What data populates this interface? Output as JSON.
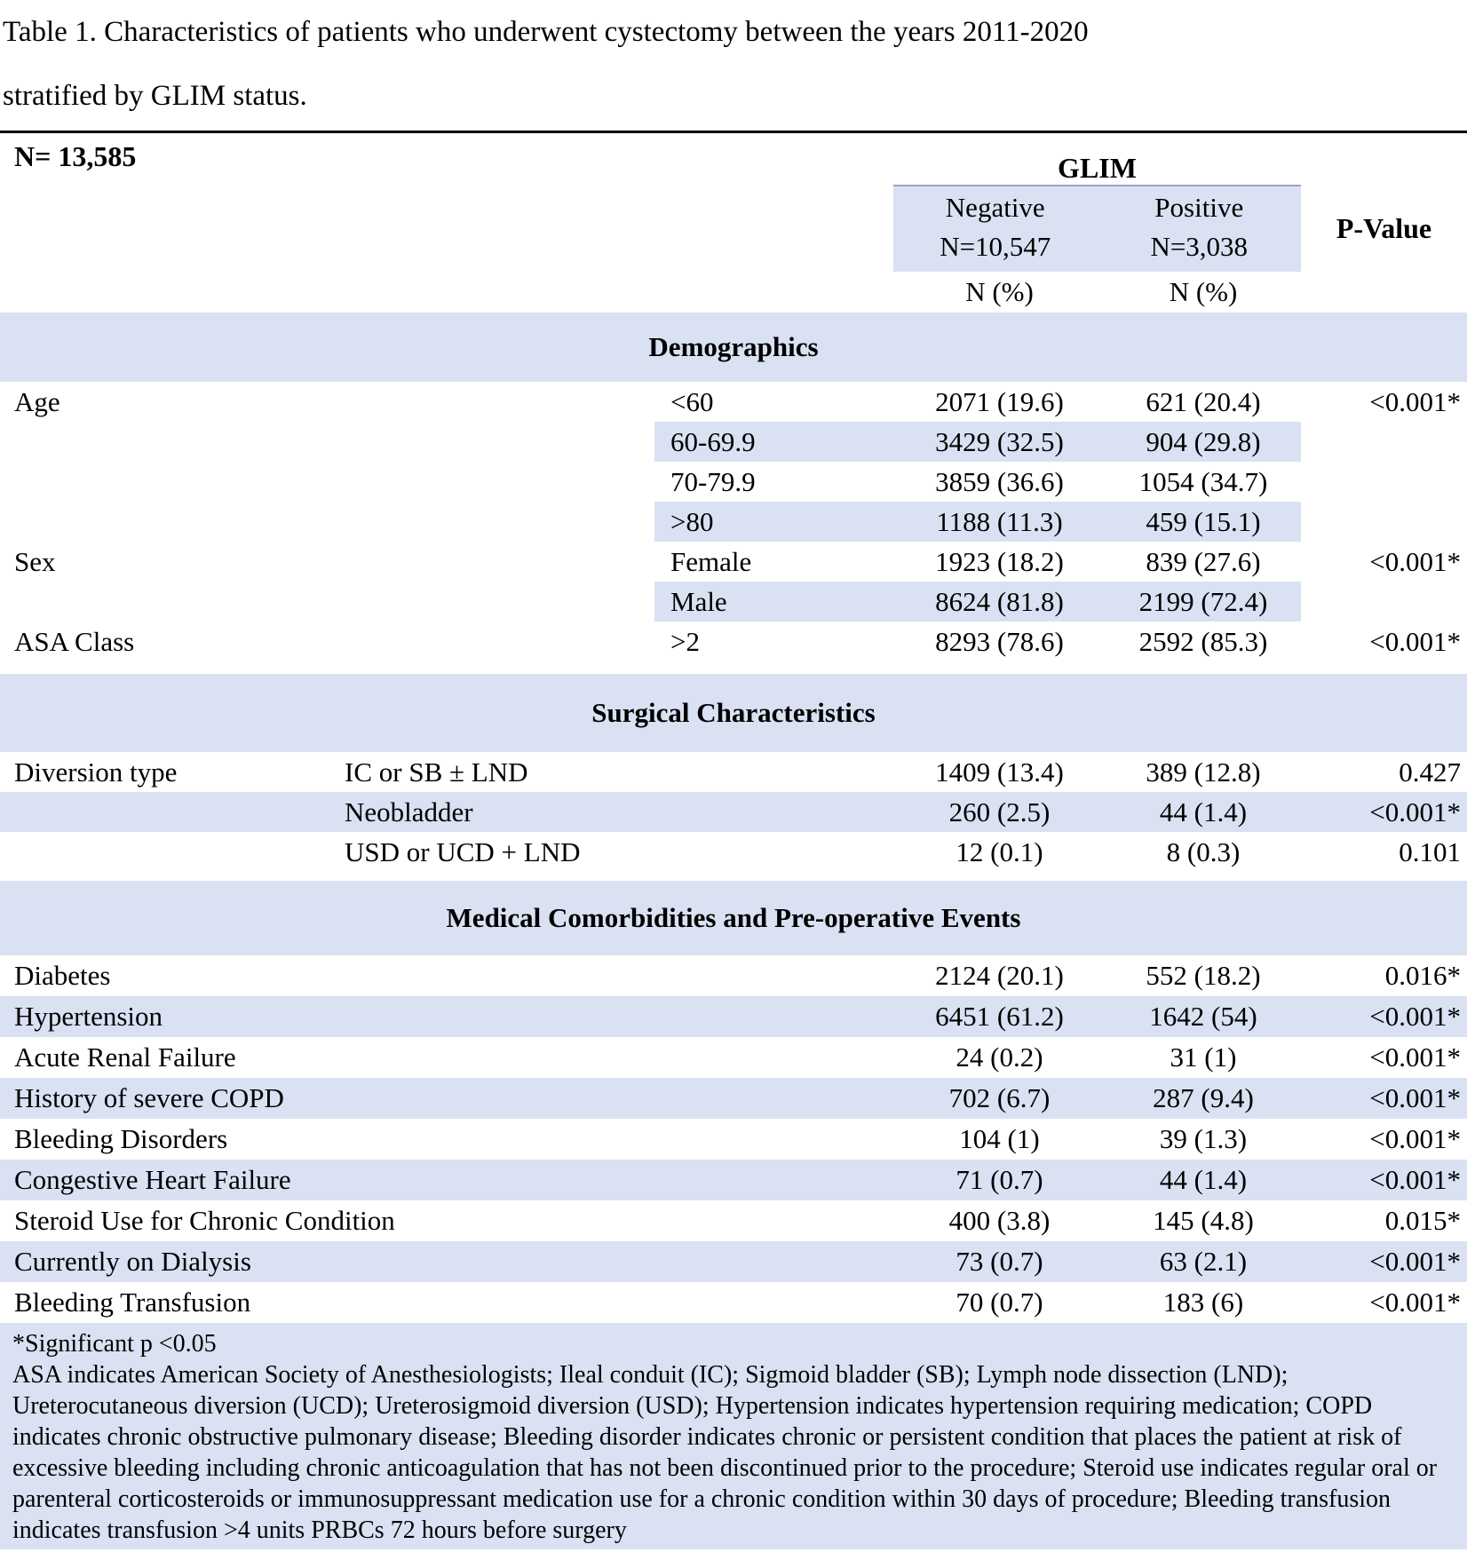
{
  "title": {
    "line1": "Table 1. Characteristics of patients who underwent cystectomy between the years 2011-2020",
    "line2": "stratified by GLIM status."
  },
  "header": {
    "n_total": "N= 13,585",
    "group_label": "GLIM",
    "p_label": "P-Value",
    "negative": {
      "name": "Negative",
      "n": "N=10,547",
      "unit": "N (%)"
    },
    "positive": {
      "name": "Positive",
      "n": "N=3,038",
      "unit": "N (%)"
    }
  },
  "colors": {
    "row_shade": "#d9e1f2",
    "header_box_border": "#95a5c7"
  },
  "sections": [
    {
      "heading": "Demographics",
      "style": "demographic",
      "rows": [
        {
          "label": "Age",
          "sub": "<60",
          "neg": "2071 (19.6)",
          "pos": "621 (20.4)",
          "p": "<0.001*",
          "shaded": false
        },
        {
          "label": "",
          "sub": "60-69.9",
          "neg": "3429 (32.5)",
          "pos": "904 (29.8)",
          "p": "",
          "shaded": true
        },
        {
          "label": "",
          "sub": "70-79.9",
          "neg": "3859 (36.6)",
          "pos": "1054 (34.7)",
          "p": "",
          "shaded": false
        },
        {
          "label": "",
          "sub": ">80",
          "neg": "1188 (11.3)",
          "pos": "459 (15.1)",
          "p": "",
          "shaded": true
        },
        {
          "label": "Sex",
          "sub": "Female",
          "neg": "1923 (18.2)",
          "pos": "839 (27.6)",
          "p": "<0.001*",
          "shaded": false
        },
        {
          "label": "",
          "sub": "Male",
          "neg": "8624 (81.8)",
          "pos": "2199 (72.4)",
          "p": "",
          "shaded": true
        },
        {
          "label": "ASA Class",
          "sub": ">2",
          "neg": "8293 (78.6)",
          "pos": "2592 (85.3)",
          "p": "<0.001*",
          "shaded": false
        }
      ]
    },
    {
      "heading": "Surgical Characteristics",
      "style": "surgical",
      "rows": [
        {
          "label": "Diversion type",
          "sub": "IC or SB ± LND",
          "neg": "1409 (13.4)",
          "pos": "389 (12.8)",
          "p": "0.427",
          "shaded": false
        },
        {
          "label": "",
          "sub": "Neobladder",
          "neg": "260 (2.5)",
          "pos": "44 (1.4)",
          "p": "<0.001*",
          "shaded": true
        },
        {
          "label": "",
          "sub": "USD or UCD + LND",
          "neg": "12 (0.1)",
          "pos": "8 (0.3)",
          "p": "0.101",
          "shaded": false
        }
      ]
    },
    {
      "heading": "Medical Comorbidities and Pre-operative Events",
      "style": "comorbidity",
      "rows": [
        {
          "label": "Diabetes",
          "neg": "2124 (20.1)",
          "pos": "552 (18.2)",
          "p": "0.016*",
          "shaded": false
        },
        {
          "label": "Hypertension",
          "neg": "6451 (61.2)",
          "pos": "1642 (54)",
          "p": "<0.001*",
          "shaded": true
        },
        {
          "label": "Acute Renal Failure",
          "neg": "24 (0.2)",
          "pos": "31 (1)",
          "p": "<0.001*",
          "shaded": false
        },
        {
          "label": "History of severe COPD",
          "neg": "702 (6.7)",
          "pos": "287 (9.4)",
          "p": "<0.001*",
          "shaded": true
        },
        {
          "label": "Bleeding Disorders",
          "neg": "104 (1)",
          "pos": "39 (1.3)",
          "p": "<0.001*",
          "shaded": false
        },
        {
          "label": "Congestive Heart Failure",
          "neg": "71 (0.7)",
          "pos": "44 (1.4)",
          "p": "<0.001*",
          "shaded": true
        },
        {
          "label": "Steroid Use for Chronic Condition",
          "neg": "400 (3.8)",
          "pos": "145 (4.8)",
          "p": "0.015*",
          "shaded": false
        },
        {
          "label": "Currently on Dialysis",
          "neg": "73 (0.7)",
          "pos": "63 (2.1)",
          "p": "<0.001*",
          "shaded": true
        },
        {
          "label": "Bleeding Transfusion",
          "neg": "70 (0.7)",
          "pos": "183 (6)",
          "p": "<0.001*",
          "shaded": false
        }
      ]
    }
  ],
  "footnotes": {
    "significance": "*Significant p <0.05",
    "abbreviations": "ASA indicates American Society of Anesthesiologists; Ileal conduit (IC); Sigmoid bladder (SB); Lymph node dissection (LND); Ureterocutaneous diversion (UCD); Ureterosigmoid diversion (USD); Hypertension indicates hypertension requiring medication; COPD indicates chronic obstructive pulmonary disease; Bleeding disorder indicates chronic or persistent condition that places the patient at risk of excessive bleeding including chronic anticoagulation that has not been discontinued prior to the procedure; Steroid use indicates regular oral or parenteral corticosteroids or immunosuppressant medication use for a chronic condition within 30 days of procedure; Bleeding transfusion indicates transfusion >4 units PRBCs 72 hours before surgery"
  }
}
